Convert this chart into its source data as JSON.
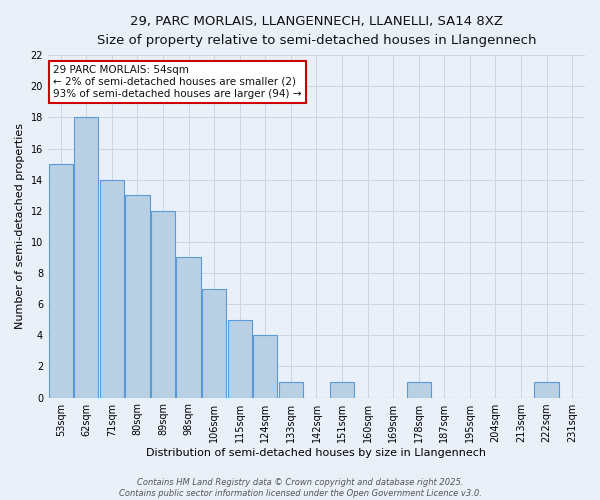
{
  "title1": "29, PARC MORLAIS, LLANGENNECH, LLANELLI, SA14 8XZ",
  "title2": "Size of property relative to semi-detached houses in Llangennech",
  "xlabel": "Distribution of semi-detached houses by size in Llangennech",
  "ylabel": "Number of semi-detached properties",
  "categories": [
    "53sqm",
    "62sqm",
    "71sqm",
    "80sqm",
    "89sqm",
    "98sqm",
    "106sqm",
    "115sqm",
    "124sqm",
    "133sqm",
    "142sqm",
    "151sqm",
    "160sqm",
    "169sqm",
    "178sqm",
    "187sqm",
    "195sqm",
    "204sqm",
    "213sqm",
    "222sqm",
    "231sqm"
  ],
  "values": [
    15,
    18,
    14,
    13,
    12,
    9,
    7,
    5,
    4,
    1,
    0,
    1,
    0,
    0,
    1,
    0,
    0,
    0,
    0,
    1,
    0
  ],
  "bar_color": "#b8cfe4",
  "bar_edge_color": "#5b9bd5",
  "ann_line1": "29 PARC MORLAIS: 54sqm",
  "ann_line2": "← 2% of semi-detached houses are smaller (2)",
  "ann_line3": "93% of semi-detached houses are larger (94) →",
  "annotation_box_color": "#ffffff",
  "annotation_box_edge_color": "#cc0000",
  "ylim": [
    0,
    22
  ],
  "yticks": [
    0,
    2,
    4,
    6,
    8,
    10,
    12,
    14,
    16,
    18,
    20,
    22
  ],
  "grid_color": "#cdd5e0",
  "bg_color": "#eaf0f8",
  "footer": "Contains HM Land Registry data © Crown copyright and database right 2025.\nContains public sector information licensed under the Open Government Licence v3.0.",
  "title_fontsize": 9.5,
  "subtitle_fontsize": 8.5,
  "axis_label_fontsize": 8,
  "tick_fontsize": 7,
  "footer_fontsize": 6,
  "ann_fontsize": 7.5
}
